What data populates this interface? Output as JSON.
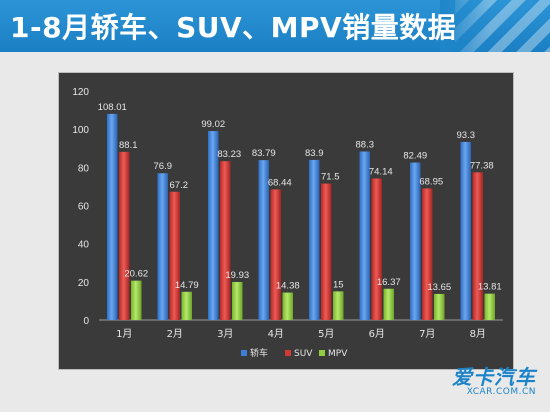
{
  "header": {
    "title": "1-8月轿车、SUV、MPV销量数据"
  },
  "watermark": {
    "logo_text": "爱卡汽车",
    "site": "XCAR.COM.CN"
  },
  "colors": {
    "header_bg": "#1f86c9",
    "chart_bg": "#3a3a3a",
    "sedan": "#3b7fd9",
    "suv": "#d23a36",
    "mpv": "#8fcf3c",
    "text": "#e6e6e6"
  },
  "chart_data": {
    "type": "bar",
    "categories": [
      "1月",
      "2月",
      "3月",
      "4月",
      "5月",
      "6月",
      "7月",
      "8月"
    ],
    "series": [
      {
        "name": "轿车",
        "values": [
          108.01,
          76.9,
          99.02,
          83.79,
          83.9,
          88.3,
          82.49,
          93.3
        ],
        "labels": [
          "108.01",
          "76.9",
          "99.02",
          "83.79",
          "83.9",
          "88.3",
          "82.49",
          "93.3"
        ]
      },
      {
        "name": "SUV",
        "values": [
          88.1,
          67.2,
          83.23,
          68.44,
          71.5,
          74.14,
          68.95,
          77.38
        ],
        "labels": [
          "88.1",
          "67.2",
          "83.23",
          "68.44",
          "71.5",
          "74.14",
          "68.95",
          "77.38"
        ]
      },
      {
        "name": "MPV",
        "values": [
          20.62,
          14.79,
          19.93,
          14.38,
          15,
          16.37,
          13.65,
          13.81
        ],
        "labels": [
          "20.62",
          "14.79",
          "19.93",
          "14.38",
          "15",
          "16.37",
          "13.65",
          "13.81"
        ]
      }
    ],
    "yticks": [
      "0",
      "20",
      "40",
      "60",
      "80",
      "100",
      "120"
    ],
    "ylim": [
      0,
      120
    ],
    "grid": false,
    "legend": "bottom-center"
  }
}
